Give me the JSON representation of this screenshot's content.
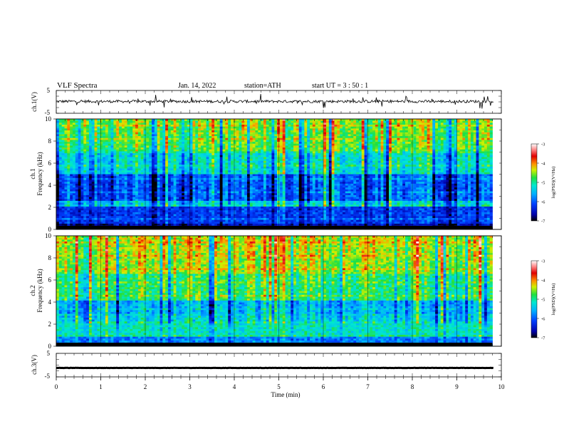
{
  "header": {
    "title": "VLF  Spectra",
    "date": "Jan. 14, 2022",
    "station": "station=ATH",
    "start": "start  UT  =    3  : 50 : 1"
  },
  "chart_data": [
    {
      "type": "line",
      "ylabel": "ch.1(V)",
      "ylim": [
        -5,
        5
      ],
      "y_ticks": [
        "5",
        "-5"
      ],
      "xlim": [
        0,
        10
      ],
      "baseline_v": 0.2,
      "noise_amplitude_v": 0.6,
      "color": "#000000"
    },
    {
      "type": "heatmap",
      "ylabel_top": "ch.1",
      "ylabel": "Frequency  (kHz)",
      "ylim": [
        0,
        10
      ],
      "y_ticks": [
        "10",
        "8",
        "6",
        "4",
        "2",
        "0"
      ],
      "xlim": [
        0,
        9.8
      ],
      "colorbar": {
        "label": "log(PSD)(V²/Hz)",
        "ticks": [
          "-3",
          "-4",
          "-5",
          "-6",
          "-7"
        ],
        "range": [
          -7,
          -3
        ],
        "colors": [
          "#000000",
          "#0000d0",
          "#0090ff",
          "#00e8e8",
          "#20e040",
          "#f0f000",
          "#ff8000",
          "#e00000",
          "#ffffff"
        ]
      }
    },
    {
      "type": "heatmap",
      "ylabel_top": "ch.2",
      "ylabel": "Frequency  (kHz)",
      "ylim": [
        0,
        10
      ],
      "y_ticks": [
        "10",
        "8",
        "6",
        "4",
        "2",
        "0"
      ],
      "xlim": [
        0,
        9.8
      ],
      "colorbar": {
        "label": "log(PSD)(V²/Hz)",
        "ticks": [
          "-3",
          "-4",
          "-5",
          "-6",
          "-7"
        ],
        "range": [
          -7,
          -3
        ],
        "colors": [
          "#000000",
          "#0000d0",
          "#0090ff",
          "#00e8e8",
          "#20e040",
          "#f0f000",
          "#ff8000",
          "#e00000",
          "#ffffff"
        ]
      }
    },
    {
      "type": "line",
      "ylabel": "ch.3(V)",
      "ylim": [
        -5,
        5
      ],
      "y_ticks": [
        "5",
        "-5"
      ],
      "xlim": [
        0,
        10
      ],
      "baseline_v": -1.2,
      "noise_amplitude_v": 0.05,
      "color": "#000000"
    }
  ],
  "x_axis": {
    "label": "Time  (min)",
    "ticks": [
      "0",
      "1",
      "2",
      "3",
      "4",
      "5",
      "6",
      "7",
      "8",
      "9",
      "10"
    ],
    "range": [
      0,
      10
    ]
  }
}
